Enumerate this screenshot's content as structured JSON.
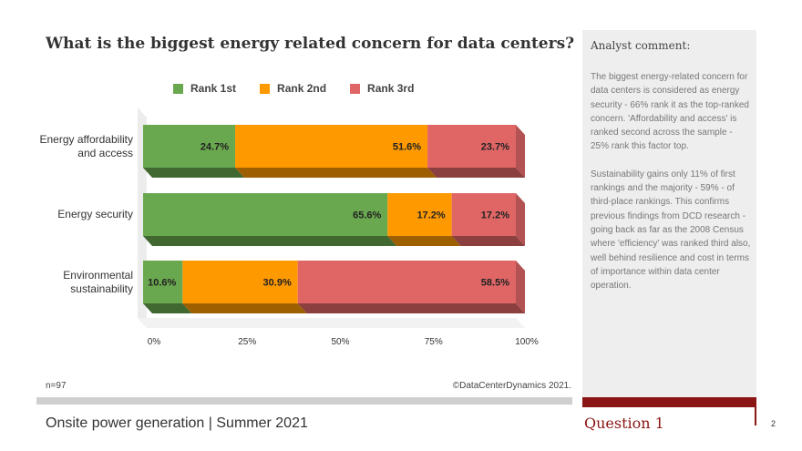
{
  "title": "What is the biggest energy related concern for data centers?",
  "legend": [
    {
      "label": "Rank 1st",
      "color": "#6aa84f"
    },
    {
      "label": "Rank 2nd",
      "color": "#ff9900"
    },
    {
      "label": "Rank 3rd",
      "color": "#e06666"
    }
  ],
  "chart_data": {
    "type": "bar",
    "orientation": "horizontal",
    "stacked": true,
    "style": "3d",
    "categories": [
      "Energy affordability and access",
      "Energy security",
      "Environmental sustainability"
    ],
    "category_lines": [
      [
        "Energy affordability",
        "and access"
      ],
      [
        "Energy security"
      ],
      [
        "Environmental",
        "sustainability"
      ]
    ],
    "series": [
      {
        "name": "Rank 1st",
        "color": "#6aa84f",
        "values": [
          24.7,
          65.6,
          10.6
        ],
        "labels": [
          "24.7%",
          "65.6%",
          "10.6%"
        ]
      },
      {
        "name": "Rank 2nd",
        "color": "#ff9900",
        "values": [
          51.6,
          17.2,
          30.9
        ],
        "labels": [
          "51.6%",
          "17.2%",
          "30.9%"
        ]
      },
      {
        "name": "Rank 3rd",
        "color": "#e06666",
        "values": [
          23.7,
          17.2,
          58.5
        ],
        "labels": [
          "23.7%",
          "17.2%",
          "58.5%"
        ]
      }
    ],
    "xlim": [
      0,
      100
    ],
    "x_ticks": [
      "0%",
      "25%",
      "50%",
      "75%",
      "100%"
    ],
    "legend_position": "top",
    "grid": false
  },
  "n_label": "n=97",
  "copyright": "©DataCenterDynamics 2021.",
  "footer_title": "Onsite power generation | Summer 2021",
  "question_label": "Question 1",
  "page_number": "2",
  "panel": {
    "title": "Analyst comment:",
    "paragraphs": [
      "The biggest energy-related concern for data centers is considered as energy security - 66% rank it as the top-ranked concern. 'Affordability and access' is ranked second across the sample - 25% rank this factor top.",
      "Sustainability gains only 11% of first rankings and the majority - 59% -  of third-place rankings. This confirms previous findings from DCD research - going back as far as the 2008 Census where 'efficiency' was ranked third also, well behind resilience and cost in terms of importance within data center operation."
    ]
  }
}
